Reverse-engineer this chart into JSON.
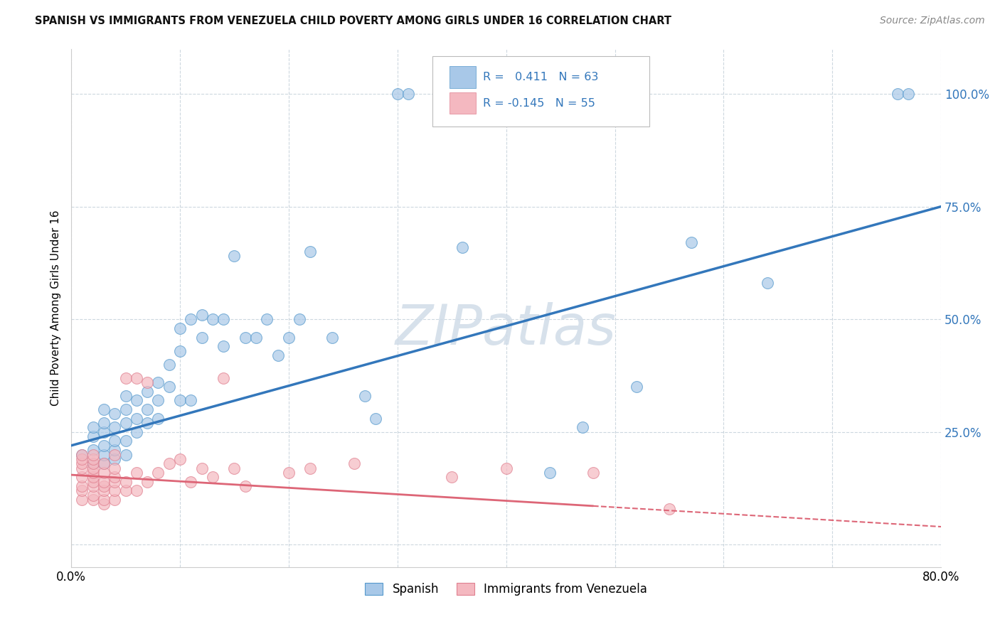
{
  "title": "SPANISH VS IMMIGRANTS FROM VENEZUELA CHILD POVERTY AMONG GIRLS UNDER 16 CORRELATION CHART",
  "source": "Source: ZipAtlas.com",
  "ylabel": "Child Poverty Among Girls Under 16",
  "xlim": [
    0.0,
    0.8
  ],
  "ylim": [
    -0.05,
    1.1
  ],
  "yticks": [
    0.0,
    0.25,
    0.5,
    0.75,
    1.0
  ],
  "ytick_labels": [
    "",
    "25.0%",
    "50.0%",
    "75.0%",
    "100.0%"
  ],
  "xticks": [
    0.0,
    0.1,
    0.2,
    0.3,
    0.4,
    0.5,
    0.6,
    0.7,
    0.8
  ],
  "xtick_labels": [
    "0.0%",
    "",
    "",
    "",
    "",
    "",
    "",
    "",
    "80.0%"
  ],
  "legend_label1": "Spanish",
  "legend_label2": "Immigrants from Venezuela",
  "blue_scatter_color": "#a8c8e8",
  "blue_edge_color": "#5599cc",
  "pink_scatter_color": "#f4b8c0",
  "pink_edge_color": "#e08090",
  "blue_line_color": "#3377bb",
  "pink_line_color": "#dd6677",
  "watermark_text": "ZIPatlas",
  "watermark_color": "#d0dce8",
  "blue_trend_x0": 0.0,
  "blue_trend_y0": 0.22,
  "blue_trend_x1": 0.8,
  "blue_trend_y1": 0.75,
  "pink_trend_x0": 0.0,
  "pink_trend_y0": 0.155,
  "pink_trend_x1": 0.8,
  "pink_trend_y1": 0.04,
  "pink_trend_solid_end": 0.48,
  "blue_x": [
    0.01,
    0.02,
    0.02,
    0.02,
    0.02,
    0.03,
    0.03,
    0.03,
    0.03,
    0.03,
    0.03,
    0.04,
    0.04,
    0.04,
    0.04,
    0.04,
    0.05,
    0.05,
    0.05,
    0.05,
    0.05,
    0.06,
    0.06,
    0.06,
    0.07,
    0.07,
    0.07,
    0.08,
    0.08,
    0.08,
    0.09,
    0.09,
    0.1,
    0.1,
    0.1,
    0.11,
    0.11,
    0.12,
    0.12,
    0.13,
    0.14,
    0.14,
    0.15,
    0.16,
    0.17,
    0.18,
    0.19,
    0.2,
    0.21,
    0.22,
    0.24,
    0.27,
    0.28,
    0.3,
    0.31,
    0.36,
    0.44,
    0.47,
    0.52,
    0.57,
    0.64,
    0.76,
    0.77
  ],
  "blue_y": [
    0.2,
    0.18,
    0.21,
    0.24,
    0.26,
    0.18,
    0.2,
    0.22,
    0.25,
    0.27,
    0.3,
    0.19,
    0.21,
    0.23,
    0.26,
    0.29,
    0.2,
    0.23,
    0.27,
    0.3,
    0.33,
    0.25,
    0.28,
    0.32,
    0.27,
    0.3,
    0.34,
    0.28,
    0.32,
    0.36,
    0.35,
    0.4,
    0.32,
    0.43,
    0.48,
    0.32,
    0.5,
    0.46,
    0.51,
    0.5,
    0.44,
    0.5,
    0.64,
    0.46,
    0.46,
    0.5,
    0.42,
    0.46,
    0.5,
    0.65,
    0.46,
    0.33,
    0.28,
    1.0,
    1.0,
    0.66,
    0.16,
    0.26,
    0.35,
    0.67,
    0.58,
    1.0,
    1.0
  ],
  "pink_x": [
    0.01,
    0.01,
    0.01,
    0.01,
    0.01,
    0.01,
    0.01,
    0.01,
    0.02,
    0.02,
    0.02,
    0.02,
    0.02,
    0.02,
    0.02,
    0.02,
    0.02,
    0.02,
    0.03,
    0.03,
    0.03,
    0.03,
    0.03,
    0.03,
    0.03,
    0.04,
    0.04,
    0.04,
    0.04,
    0.04,
    0.04,
    0.05,
    0.05,
    0.05,
    0.06,
    0.06,
    0.06,
    0.07,
    0.07,
    0.08,
    0.09,
    0.1,
    0.11,
    0.12,
    0.13,
    0.14,
    0.15,
    0.16,
    0.2,
    0.22,
    0.26,
    0.35,
    0.4,
    0.48,
    0.55
  ],
  "pink_y": [
    0.1,
    0.12,
    0.13,
    0.15,
    0.17,
    0.18,
    0.19,
    0.2,
    0.1,
    0.11,
    0.13,
    0.14,
    0.15,
    0.16,
    0.17,
    0.18,
    0.19,
    0.2,
    0.09,
    0.1,
    0.12,
    0.13,
    0.14,
    0.16,
    0.18,
    0.1,
    0.12,
    0.14,
    0.15,
    0.17,
    0.2,
    0.12,
    0.14,
    0.37,
    0.12,
    0.16,
    0.37,
    0.14,
    0.36,
    0.16,
    0.18,
    0.19,
    0.14,
    0.17,
    0.15,
    0.37,
    0.17,
    0.13,
    0.16,
    0.17,
    0.18,
    0.15,
    0.17,
    0.16,
    0.08
  ]
}
